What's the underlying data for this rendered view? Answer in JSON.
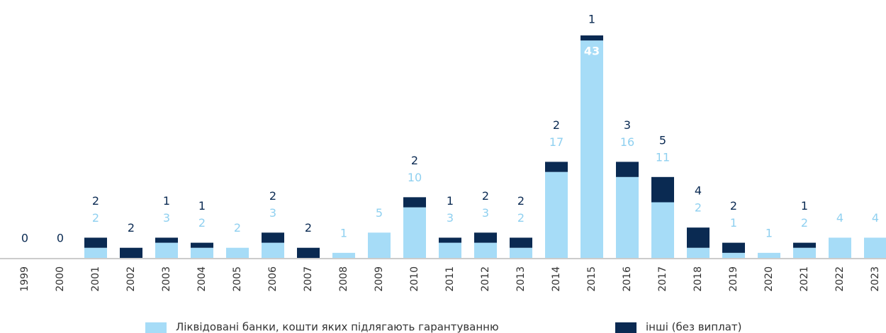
{
  "chart_data": {
    "type": "stacked_bar",
    "categories": [
      "1999",
      "2000",
      "2001",
      "2002",
      "2003",
      "2004",
      "2005",
      "2006",
      "2007",
      "2008",
      "2009",
      "2010",
      "2011",
      "2012",
      "2013",
      "2014",
      "2015",
      "2016",
      "2017",
      "2018",
      "2019",
      "2020",
      "2021",
      "2022",
      "2023"
    ],
    "series": [
      {
        "name": "Ліквідовані банки, кошти яких підлягають гарантуванню",
        "color": "#a6dcf7",
        "values": [
          null,
          null,
          2,
          null,
          3,
          2,
          2,
          3,
          null,
          1,
          5,
          10,
          3,
          3,
          2,
          17,
          43,
          16,
          11,
          2,
          1,
          1,
          2,
          4,
          4
        ]
      },
      {
        "name": "інші (без виплат)",
        "color": "#0a2a52",
        "values": [
          0,
          0,
          2,
          2,
          1,
          1,
          null,
          2,
          2,
          null,
          null,
          2,
          1,
          2,
          2,
          2,
          1,
          3,
          5,
          4,
          2,
          null,
          1,
          null,
          null
        ]
      }
    ]
  }
}
